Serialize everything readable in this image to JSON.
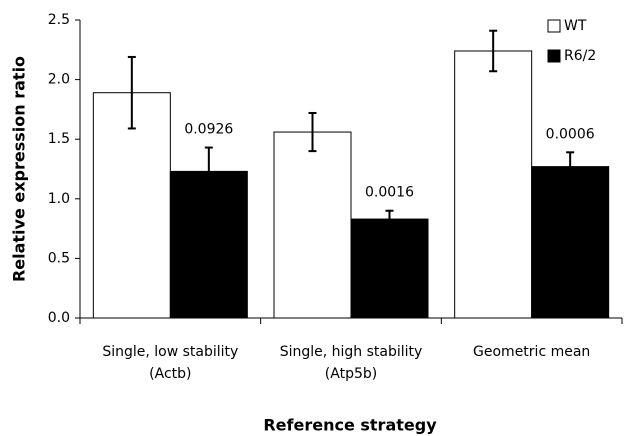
{
  "chart_data": {
    "type": "bar",
    "xlabel": "Reference strategy",
    "ylabel": "Relative expression ratio",
    "categories": [
      [
        "Single, low stability",
        "(Actb)"
      ],
      [
        "Single, high stability",
        "(Atp5b)"
      ],
      [
        "Geometric mean"
      ]
    ],
    "series": [
      {
        "name": "WT",
        "color": "#ffffff",
        "values": [
          1.89,
          1.56,
          2.24
        ],
        "errors": [
          0.3,
          0.16,
          0.17
        ]
      },
      {
        "name": "R6/2",
        "color": "#000000",
        "values": [
          1.23,
          0.83,
          1.27
        ],
        "errors": [
          0.2,
          0.07,
          0.12
        ]
      }
    ],
    "annotations": [
      "0.0926",
      "0.0016",
      "0.0006"
    ],
    "ylim": [
      0,
      2.5
    ],
    "yticks": [
      {
        "value": 0,
        "label": "0.0"
      },
      {
        "value": 0.5,
        "label": "0.5"
      },
      {
        "value": 1,
        "label": "1.0"
      },
      {
        "value": 1.5,
        "label": "1.5"
      },
      {
        "value": 2,
        "label": "2.0"
      },
      {
        "value": 2.5,
        "label": "2.5"
      }
    ],
    "legend": "top-right"
  }
}
